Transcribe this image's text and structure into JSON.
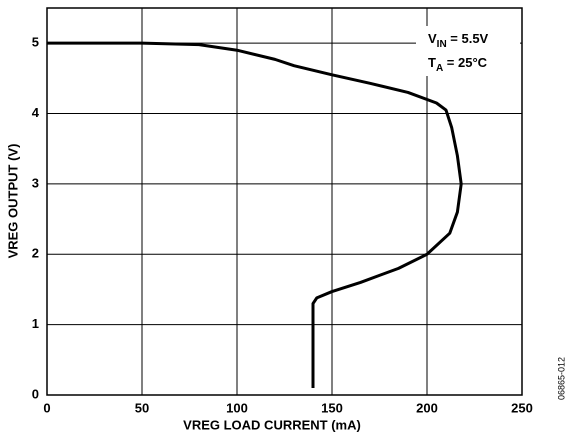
{
  "chart_data": {
    "type": "line",
    "xlabel": "VREG LOAD CURRENT (mA)",
    "ylabel": "VREG OUTPUT (V)",
    "x": [
      0,
      50,
      80,
      100,
      120,
      130,
      150,
      170,
      190,
      205,
      210,
      213,
      216,
      218,
      216,
      212,
      200,
      185,
      165,
      150,
      142,
      140,
      140,
      140
    ],
    "series": [
      {
        "color": "#000000",
        "values": [
          5.0,
          5.0,
          4.98,
          4.9,
          4.77,
          4.68,
          4.55,
          4.43,
          4.3,
          4.15,
          4.05,
          3.8,
          3.4,
          3.0,
          2.6,
          2.3,
          2.0,
          1.8,
          1.6,
          1.47,
          1.38,
          1.3,
          1.2,
          0.1
        ]
      }
    ],
    "xlim": [
      0,
      250
    ],
    "xticks": [
      0,
      50,
      100,
      150,
      200,
      250
    ],
    "ylim": [
      0,
      5.5
    ],
    "yticks": [
      0,
      1,
      2,
      3,
      4,
      5
    ],
    "grid": true,
    "annotations": [
      {
        "main": "V",
        "sub": "IN",
        "rest": " = 5.5V"
      },
      {
        "main": "T",
        "sub": "A",
        "rest": " = 25°C"
      }
    ],
    "figure_id": "06865-012"
  }
}
